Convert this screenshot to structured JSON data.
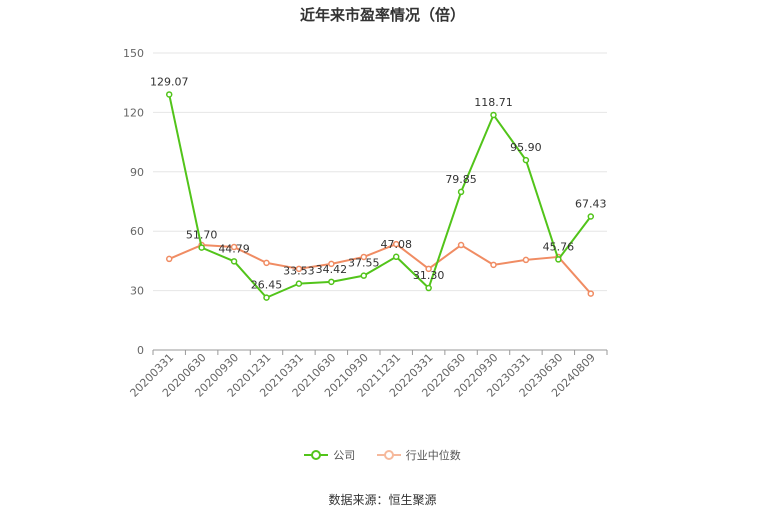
{
  "title": "近年来市盈率情况（倍）",
  "source": "数据来源：恒生聚源",
  "colors": {
    "company": "#52c41a",
    "industry": "#f08c63",
    "axis": "#666666",
    "grid": "#e6e6e6"
  },
  "chart_data": {
    "type": "line",
    "title": "近年来市盈率情况（倍）",
    "categories": [
      "20200331",
      "20200630",
      "20200930",
      "20201231",
      "20210331",
      "20210630",
      "20210930",
      "20211231",
      "20220331",
      "20220630",
      "20220930",
      "20230331",
      "20230630",
      "20240809"
    ],
    "ylim": [
      0,
      150
    ],
    "yticks": [
      0,
      30,
      60,
      90,
      120,
      150
    ],
    "grid": true,
    "legend_position": "bottom",
    "series": [
      {
        "name": "公司",
        "color": "#52c41a",
        "show_labels": true,
        "values": [
          129.07,
          51.7,
          44.79,
          26.45,
          33.53,
          34.42,
          37.55,
          47.08,
          31.3,
          79.85,
          118.71,
          95.9,
          45.76,
          67.43
        ],
        "labels": [
          "129.07",
          "51.70",
          "44.79",
          "26.45",
          "33.53",
          "34.42",
          "37.55",
          "47.08",
          "31.30",
          "79.85",
          "118.71",
          "95.90",
          "45.76",
          "67.43"
        ]
      },
      {
        "name": "行业中位数",
        "color": "#f08c63",
        "show_labels": false,
        "values": [
          46.0,
          53.0,
          52.0,
          44.0,
          41.0,
          43.5,
          47.0,
          53.5,
          41.0,
          53.0,
          43.0,
          45.5,
          47.0,
          28.5
        ]
      }
    ]
  }
}
